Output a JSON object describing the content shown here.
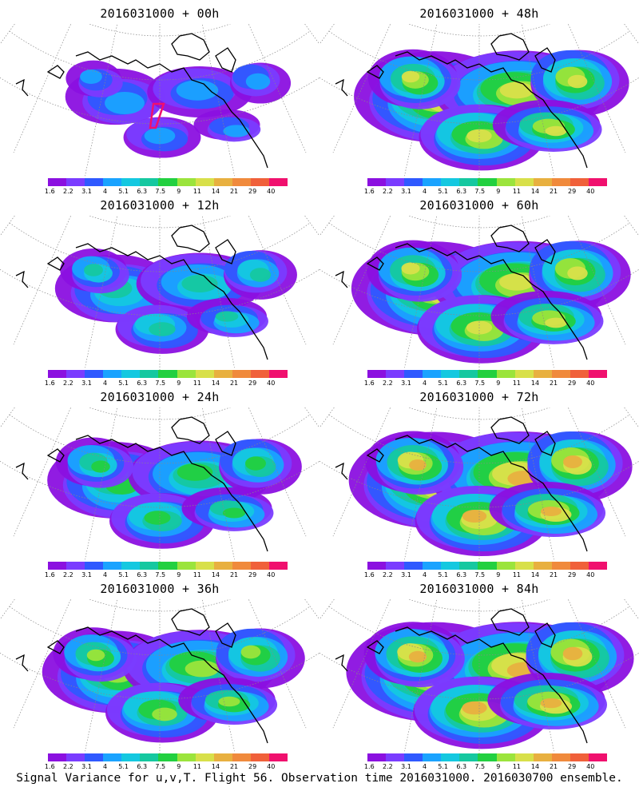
{
  "colors": {
    "levels": [
      "#8b10e0",
      "#7a3cff",
      "#2f59ff",
      "#1aa3ff",
      "#14c8e0",
      "#15c8a0",
      "#22d040",
      "#9be43c",
      "#d8e04a",
      "#e8b040",
      "#f08a3c",
      "#f0603a",
      "#f0106e"
    ],
    "coast": "#000000",
    "grid": "#888888"
  },
  "colorbar": {
    "labels": [
      "1.6",
      "2.2",
      "3.1",
      "4",
      "5.1",
      "6.3",
      "7.5",
      "9",
      "11",
      "14",
      "21",
      "29",
      "40"
    ]
  },
  "panels": [
    {
      "title": "2016031000 + 00h",
      "intensity": 0.15,
      "has_flight_track": true
    },
    {
      "title": "2016031000 + 48h",
      "intensity": 0.75,
      "has_flight_track": false
    },
    {
      "title": "2016031000 + 12h",
      "intensity": 0.35,
      "has_flight_track": false
    },
    {
      "title": "2016031000 + 60h",
      "intensity": 0.8,
      "has_flight_track": false
    },
    {
      "title": "2016031000 + 24h",
      "intensity": 0.5,
      "has_flight_track": false
    },
    {
      "title": "2016031000 + 72h",
      "intensity": 0.85,
      "has_flight_track": false
    },
    {
      "title": "2016031000 + 36h",
      "intensity": 0.6,
      "has_flight_track": false
    },
    {
      "title": "2016031000 + 84h",
      "intensity": 0.9,
      "has_flight_track": false
    }
  ],
  "footer": "Signal Variance for u,v,T. Flight 56. Observation time 2016031000. 2016030700 ensemble."
}
